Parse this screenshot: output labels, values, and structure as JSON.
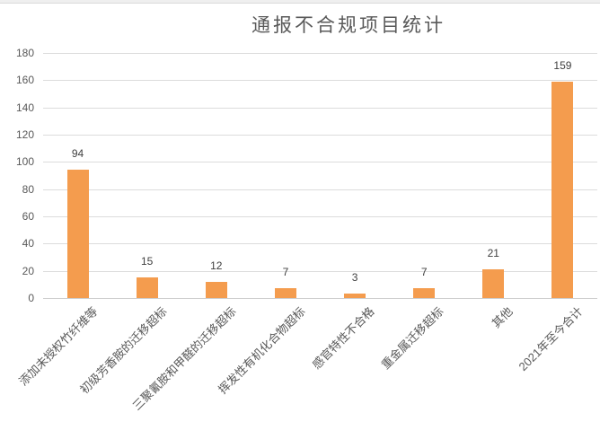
{
  "chart_data": {
    "type": "bar",
    "title": "通报不合规项目统计",
    "categories": [
      "添加未授权竹纤维等",
      "初级芳香胺的迁移超标",
      "三聚氰胺和甲醛的迁移超标",
      "挥发性有机化合物超标",
      "感官特性不合格",
      "重金属迁移超标",
      "其他",
      "2021年至今合计"
    ],
    "values": [
      94,
      15,
      12,
      7,
      3,
      7,
      21,
      159
    ],
    "xlabel": "",
    "ylabel": "",
    "ylim": [
      0,
      180
    ],
    "yticks": [
      0,
      20,
      40,
      60,
      80,
      100,
      120,
      140,
      160,
      180
    ],
    "grid": true,
    "legend": "none",
    "x_label_rotation_deg": 45,
    "colors": {
      "bar": "#F49C4E",
      "gridline": "#DCDCDC",
      "axis_line": "#CFCFCF",
      "title_text": "#595959",
      "tick_text": "#595959",
      "value_label_text": "#3F3F3F"
    }
  }
}
